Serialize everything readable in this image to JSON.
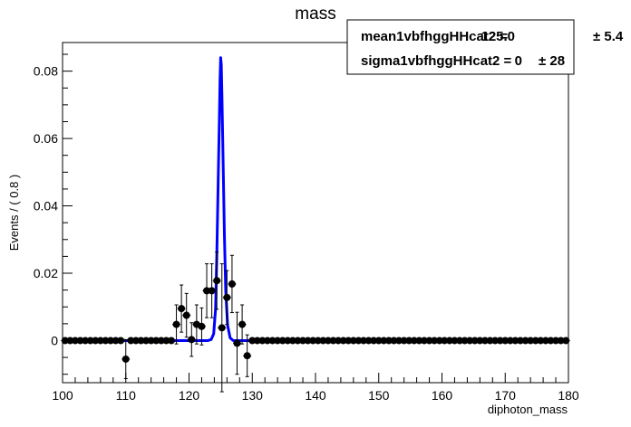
{
  "chart_data": {
    "type": "scatter",
    "title": "mass",
    "xlabel": "diphoton_mass",
    "ylabel": "Events / ( 0.8 )",
    "xlim": [
      100,
      180
    ],
    "ylim": [
      -0.0125,
      0.0885
    ],
    "x_ticks": [
      100,
      110,
      120,
      130,
      140,
      150,
      160,
      170,
      180
    ],
    "x_tick_labels": [
      "100",
      "110",
      "120",
      "130",
      "140",
      "150",
      "160",
      "170",
      "180"
    ],
    "y_ticks": [
      0,
      0.02,
      0.04,
      0.06,
      0.08
    ],
    "y_tick_labels": [
      "0",
      "0.02",
      "0.04",
      "0.06",
      "0.08"
    ],
    "grid": false,
    "data_points": {
      "x": [
        100.4,
        101.2,
        102.0,
        102.8,
        103.6,
        104.4,
        105.2,
        106.0,
        106.8,
        107.6,
        108.4,
        109.2,
        110.0,
        110.8,
        111.6,
        112.4,
        113.2,
        114.0,
        114.8,
        115.6,
        116.4,
        117.2,
        118.0,
        118.8,
        119.6,
        120.4,
        121.2,
        122.0,
        122.8,
        123.6,
        124.4,
        125.2,
        126.0,
        126.8,
        127.6,
        128.4,
        129.2,
        130.0,
        130.8,
        131.6,
        132.4,
        133.2,
        134.0,
        134.8,
        135.6,
        136.4,
        137.2,
        138.0,
        138.8,
        139.6,
        140.4,
        141.2,
        142.0,
        142.8,
        143.6,
        144.4,
        145.2,
        146.0,
        146.8,
        147.6,
        148.4,
        149.2,
        150.0,
        150.8,
        151.6,
        152.4,
        153.2,
        154.0,
        154.8,
        155.6,
        156.4,
        157.2,
        158.0,
        158.8,
        159.6,
        160.4,
        161.2,
        162.0,
        162.8,
        163.6,
        164.4,
        165.2,
        166.0,
        166.8,
        167.6,
        168.4,
        169.2,
        170.0,
        170.8,
        171.6,
        172.4,
        173.2,
        174.0,
        174.8,
        175.6,
        176.4,
        177.2,
        178.0,
        178.8,
        179.6
      ],
      "y": [
        0,
        0,
        0,
        0,
        0,
        0,
        0,
        0,
        0,
        0,
        0,
        0,
        -0.0055,
        0,
        0,
        0,
        0,
        0,
        0,
        0,
        0,
        0,
        0.0048,
        0.0095,
        0.0075,
        0.0003,
        0.0048,
        0.0042,
        0.0148,
        0.0148,
        0.0178,
        0.0038,
        0.0128,
        0.0168,
        -0.0008,
        0.0048,
        -0.0045,
        0,
        0,
        0,
        0,
        0,
        0,
        0,
        0,
        0,
        0,
        0,
        0,
        0,
        0,
        0,
        0,
        0,
        0,
        0,
        0,
        0,
        0,
        0,
        0,
        0,
        0,
        0,
        0,
        0,
        0,
        0,
        0,
        0,
        0,
        0,
        0,
        0,
        0,
        0,
        0,
        0,
        0,
        0,
        0,
        0,
        0,
        0,
        0,
        0,
        0,
        0,
        0,
        0,
        0,
        0,
        0,
        0,
        0,
        0,
        0,
        0,
        0,
        0
      ],
      "y_err": [
        0,
        0,
        0,
        0,
        0,
        0,
        0,
        0,
        0,
        0,
        0,
        0,
        0.0058,
        0,
        0,
        0,
        0,
        0,
        0,
        0,
        0,
        0,
        0.0058,
        0.007,
        0.0065,
        0.005,
        0.0058,
        0.0055,
        0.008,
        0.008,
        0.0085,
        0.019,
        0.008,
        0.0085,
        0.0092,
        0.0058,
        0.0062,
        0,
        0,
        0,
        0,
        0,
        0,
        0,
        0,
        0,
        0,
        0,
        0,
        0,
        0,
        0,
        0,
        0,
        0,
        0,
        0,
        0,
        0,
        0,
        0,
        0,
        0,
        0,
        0,
        0,
        0,
        0,
        0,
        0,
        0,
        0,
        0,
        0,
        0,
        0,
        0,
        0,
        0,
        0,
        0,
        0,
        0,
        0,
        0,
        0,
        0,
        0,
        0,
        0,
        0,
        0,
        0,
        0,
        0,
        0,
        0,
        0,
        0,
        0
      ]
    },
    "fit_curve": {
      "x": [
        100,
        123,
        123.5,
        123.9,
        124.2,
        124.4,
        124.6,
        124.8,
        124.9,
        125.0,
        125.1,
        125.2,
        125.4,
        125.6,
        125.8,
        126.1,
        126.5,
        127,
        180
      ],
      "y": [
        0,
        0,
        0.0003,
        0.002,
        0.0095,
        0.026,
        0.046,
        0.066,
        0.077,
        0.084,
        0.082,
        0.073,
        0.052,
        0.031,
        0.015,
        0.0045,
        0.0008,
        0,
        0
      ],
      "color": "#0000ff"
    },
    "stats_box": {
      "rows": [
        {
          "name": "mean1vbfhggHHcat2 =",
          "value": "125.0",
          "error": "± 5.4"
        },
        {
          "name": "sigma1vbfhggHHcat2 =",
          "value": "0",
          "error": "± 28"
        }
      ]
    },
    "colors": {
      "points": "#000000",
      "fit": "#0000ff",
      "frame": "#000000"
    }
  }
}
